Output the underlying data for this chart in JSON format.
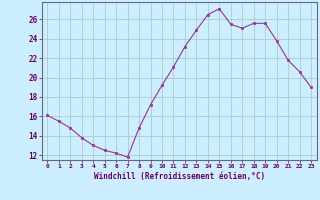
{
  "x": [
    0,
    1,
    2,
    3,
    4,
    5,
    6,
    7,
    8,
    9,
    10,
    11,
    12,
    13,
    14,
    15,
    16,
    17,
    18,
    19,
    20,
    21,
    22,
    23
  ],
  "y": [
    16.1,
    15.5,
    14.8,
    13.8,
    13.0,
    12.5,
    12.2,
    11.8,
    14.8,
    17.2,
    19.2,
    21.1,
    23.2,
    24.9,
    26.5,
    27.1,
    25.5,
    25.1,
    25.6,
    25.6,
    23.8,
    21.8,
    20.6,
    19.0
  ],
  "line_color": "#993399",
  "marker": "s",
  "marker_size": 2.0,
  "bg_color": "#cceeff",
  "grid_color": "#aacccc",
  "xlabel": "Windchill (Refroidissement éolien,°C)",
  "ylim": [
    11.5,
    27.8
  ],
  "xlim": [
    -0.5,
    23.5
  ],
  "yticks": [
    12,
    14,
    16,
    18,
    20,
    22,
    24,
    26
  ],
  "xticks": [
    0,
    1,
    2,
    3,
    4,
    5,
    6,
    7,
    8,
    9,
    10,
    11,
    12,
    13,
    14,
    15,
    16,
    17,
    18,
    19,
    20,
    21,
    22,
    23
  ],
  "xtick_labels": [
    "0",
    "1",
    "2",
    "3",
    "4",
    "5",
    "6",
    "7",
    "8",
    "9",
    "10",
    "11",
    "12",
    "13",
    "14",
    "15",
    "16",
    "17",
    "18",
    "19",
    "20",
    "21",
    "22",
    "23"
  ],
  "tick_color": "#660066",
  "label_color": "#660066",
  "spine_color": "#666688"
}
